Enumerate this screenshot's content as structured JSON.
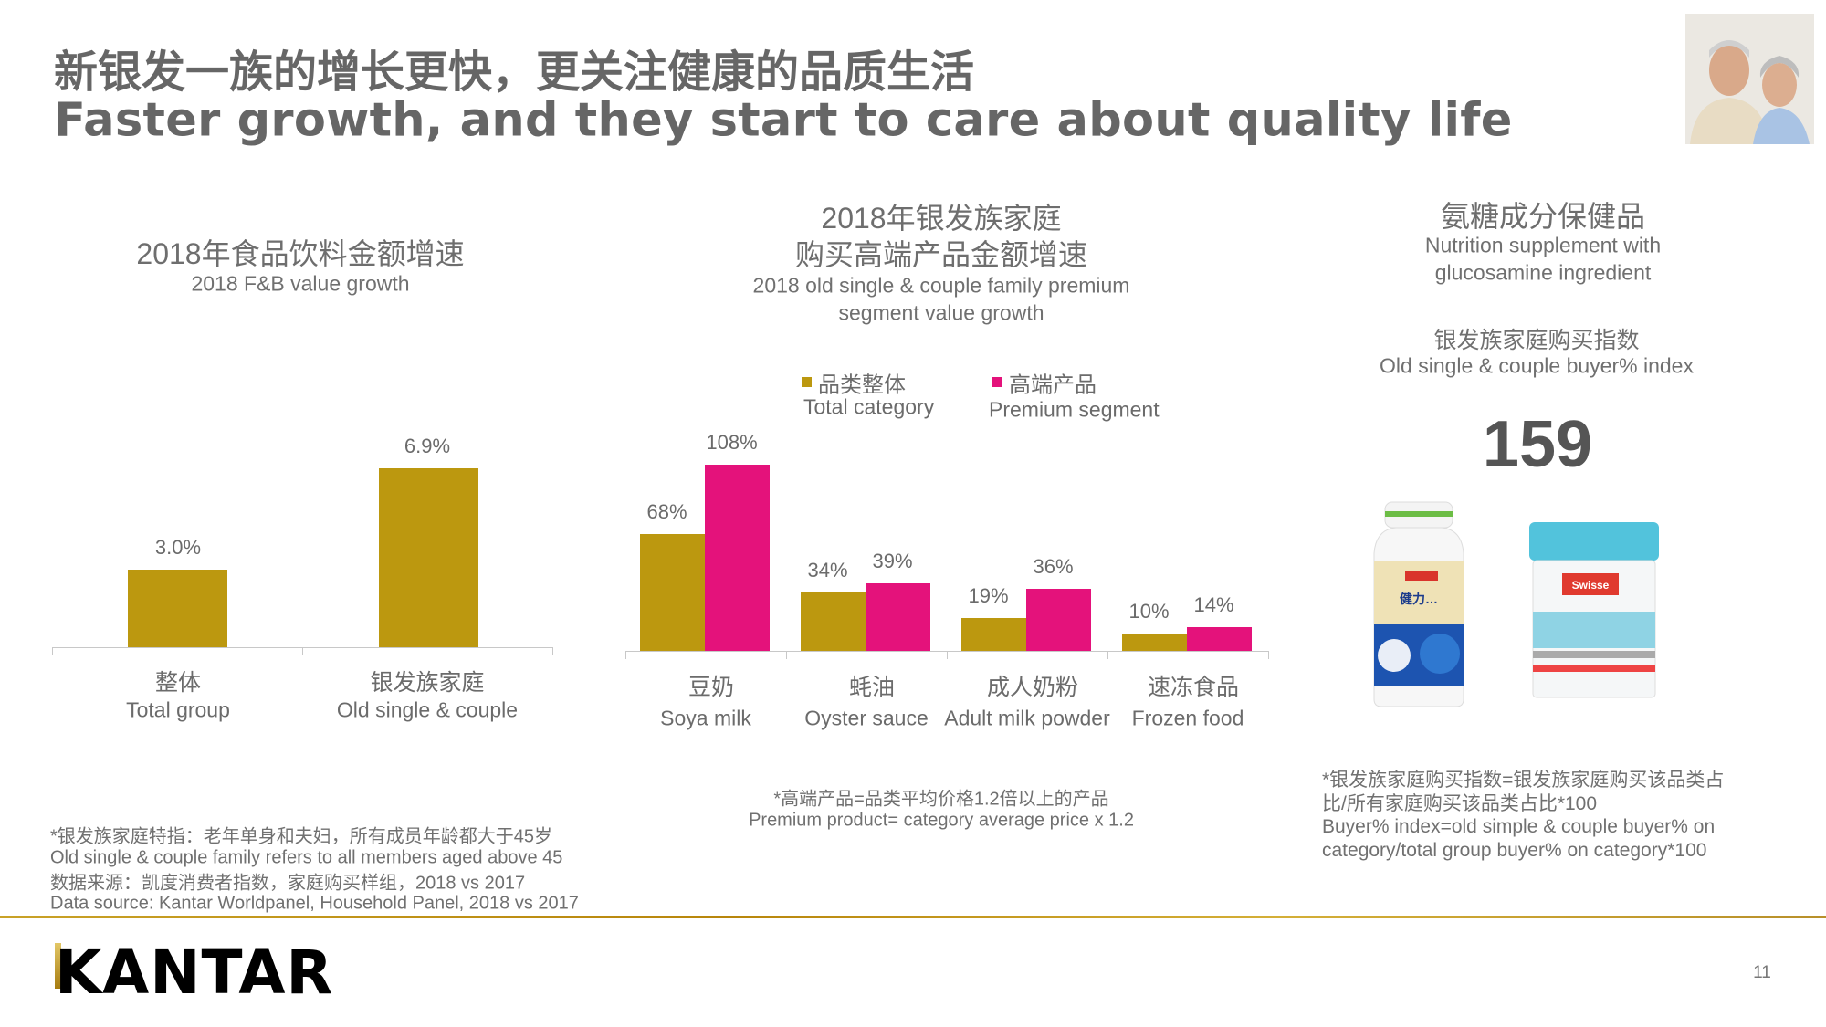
{
  "header": {
    "title_cn": "新银发一族的增长更快，更关注健康的品质生活",
    "title_en": "Faster growth, and they start to care about quality life"
  },
  "colors": {
    "gold": "#BC980F",
    "pink": "#E4127B",
    "text": "#6B6B6B"
  },
  "chart_data": [
    {
      "type": "bar",
      "title": "2018年食品饮料金额增速",
      "subtitle": "2018 F&B value growth",
      "categories": [
        {
          "cn": "整体",
          "en": "Total group"
        },
        {
          "cn": "银发族家庭",
          "en": "Old single & couple"
        }
      ],
      "values": [
        3.0,
        6.9
      ],
      "value_labels": [
        "3.0%",
        "6.9%"
      ],
      "unit": "%",
      "ylim": [
        0,
        6.9
      ],
      "grid": false
    },
    {
      "type": "bar",
      "title_lines": [
        "2018年银发族家庭",
        "购买高端产品金额增速"
      ],
      "subtitle_lines": [
        "2018 old single & couple family premium",
        "segment value growth"
      ],
      "legend": [
        {
          "cn": "品类整体",
          "en": "Total category",
          "color": "#BC980F"
        },
        {
          "cn": "高端产品",
          "en": "Premium segment",
          "color": "#E4127B"
        }
      ],
      "legend_position": "top",
      "categories": [
        {
          "cn": "豆奶",
          "en": "Soya milk"
        },
        {
          "cn": "蚝油",
          "en": "Oyster sauce"
        },
        {
          "cn": "成人奶粉",
          "en": "Adult milk powder"
        },
        {
          "cn": "速冻食品",
          "en": "Frozen food"
        }
      ],
      "series": [
        {
          "name": "Total category",
          "values": [
            68,
            34,
            19,
            10
          ],
          "labels": [
            "68%",
            "34%",
            "19%",
            "10%"
          ]
        },
        {
          "name": "Premium segment",
          "values": [
            108,
            39,
            36,
            14
          ],
          "labels": [
            "108%",
            "39%",
            "36%",
            "14%"
          ]
        }
      ],
      "unit": "%",
      "ylim": [
        0,
        108
      ],
      "grid": false
    }
  ],
  "right_panel": {
    "title_cn": "氨糖成分保健品",
    "title_en_lines": [
      "Nutrition supplement with",
      "glucosamine ingredient"
    ],
    "index_title_cn": "银发族家庭购买指数",
    "index_title_en": "Old single & couple buyer% index",
    "index_value": "159",
    "product_images": [
      "glucosamine-bottle-cn",
      "swisse-glucosamine-sulfate"
    ]
  },
  "notes": {
    "left": [
      "*银发族家庭特指：老年单身和夫妇，所有成员年龄都大于45岁",
      "Old single & couple family refers to all members aged above 45",
      "数据来源：凯度消费者指数，家庭购买样组，2018  vs 2017",
      "Data source: Kantar Worldpanel, Household Panel, 2018 vs 2017"
    ],
    "center": [
      "*高端产品=品类平均价格1.2倍以上的产品",
      "Premium product= category average price x 1.2"
    ],
    "right": [
      "*银发族家庭购买指数=银发族家庭购买该品类占",
      "比/所有家庭购买该品类占比*100",
      "Buyer% index=old simple & couple buyer% on",
      "category/total group buyer% on category*100"
    ]
  },
  "footer": {
    "logo": "KANTAR",
    "page_number": "11"
  }
}
